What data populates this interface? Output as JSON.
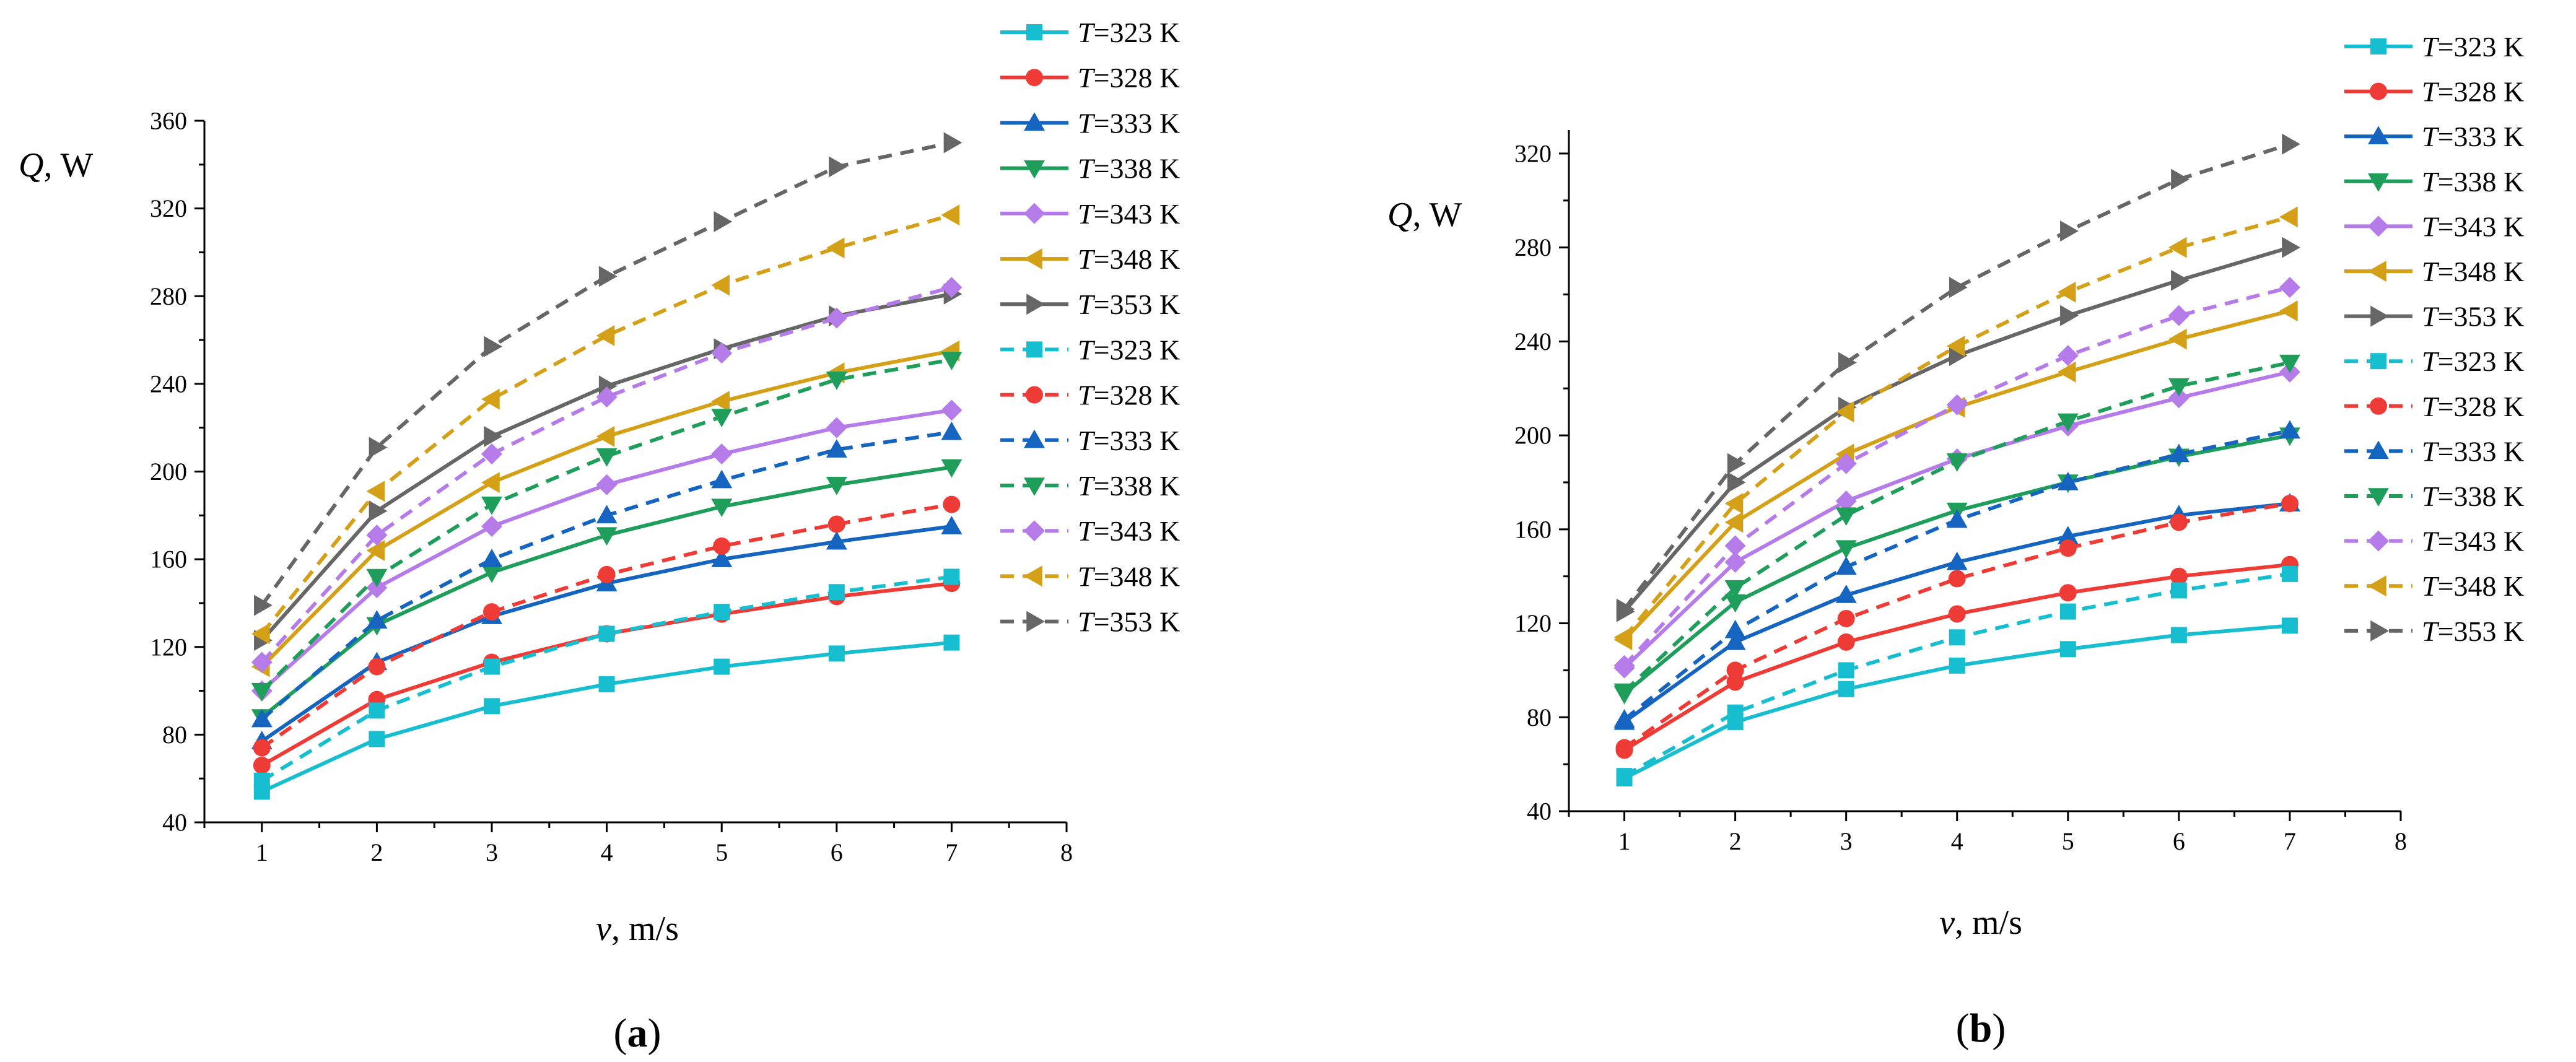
{
  "chart_data": [
    {
      "type": "line",
      "panel_label": "(a)",
      "xlabel": "v, m/s",
      "ylabel": "Q, W",
      "xlim": [
        0.5,
        8
      ],
      "ylim": [
        40,
        360
      ],
      "xticks": [
        1,
        2,
        3,
        4,
        5,
        6,
        7,
        8
      ],
      "yticks": [
        40,
        80,
        120,
        160,
        200,
        240,
        280,
        320,
        360
      ],
      "x": [
        1,
        2,
        3,
        4,
        5,
        6,
        7
      ],
      "series": [
        {
          "name": "T=323 K",
          "style": "solid",
          "marker": "square",
          "color": "#17becf",
          "values": [
            54,
            78,
            93,
            103,
            111,
            117,
            122
          ]
        },
        {
          "name": "T=328 K",
          "style": "solid",
          "marker": "circle",
          "color": "#ef3b36",
          "values": [
            66,
            96,
            113,
            126,
            135,
            143,
            149
          ]
        },
        {
          "name": "T=333 K",
          "style": "solid",
          "marker": "triangle-up",
          "color": "#1565c0",
          "values": [
            77,
            113,
            134,
            149,
            160,
            168,
            175
          ]
        },
        {
          "name": "T=338 K",
          "style": "solid",
          "marker": "triangle-down",
          "color": "#1e9e5a",
          "values": [
            88,
            130,
            154,
            171,
            184,
            194,
            202
          ]
        },
        {
          "name": "T=343 K",
          "style": "solid",
          "marker": "diamond",
          "color": "#b57be8",
          "values": [
            100,
            147,
            175,
            194,
            208,
            220,
            228
          ]
        },
        {
          "name": "T=348 K",
          "style": "solid",
          "marker": "triangle-left",
          "color": "#d4a017",
          "values": [
            111,
            164,
            195,
            216,
            232,
            245,
            255
          ]
        },
        {
          "name": "T=353 K",
          "style": "solid",
          "marker": "triangle-right",
          "color": "#666666",
          "values": [
            123,
            182,
            216,
            239,
            256,
            271,
            281
          ]
        },
        {
          "name": "T=323 K",
          "style": "dashed",
          "marker": "square",
          "color": "#17becf",
          "values": [
            59,
            91,
            111,
            126,
            136,
            145,
            152
          ]
        },
        {
          "name": "T=328 K",
          "style": "dashed",
          "marker": "circle",
          "color": "#ef3b36",
          "values": [
            74,
            111,
            136,
            153,
            166,
            176,
            185
          ]
        },
        {
          "name": "T=333 K",
          "style": "dashed",
          "marker": "triangle-up",
          "color": "#1565c0",
          "values": [
            87,
            132,
            160,
            180,
            196,
            210,
            218
          ]
        },
        {
          "name": "T=338 K",
          "style": "dashed",
          "marker": "triangle-down",
          "color": "#1e9e5a",
          "values": [
            100,
            152,
            185,
            207,
            225,
            242,
            251
          ]
        },
        {
          "name": "T=343 K",
          "style": "dashed",
          "marker": "diamond",
          "color": "#b57be8",
          "values": [
            113,
            171,
            208,
            234,
            254,
            270,
            284
          ]
        },
        {
          "name": "T=348 K",
          "style": "dashed",
          "marker": "triangle-left",
          "color": "#d4a017",
          "values": [
            126,
            191,
            233,
            262,
            285,
            302,
            317
          ]
        },
        {
          "name": "T=353 K",
          "style": "dashed",
          "marker": "triangle-right",
          "color": "#666666",
          "values": [
            139,
            211,
            257,
            289,
            314,
            339,
            350
          ]
        }
      ]
    },
    {
      "type": "line",
      "panel_label": "(b)",
      "xlabel": "v, m/s",
      "ylabel": "Q, W",
      "xlim": [
        0.5,
        8
      ],
      "ylim": [
        40,
        330
      ],
      "xticks": [
        1,
        2,
        3,
        4,
        5,
        6,
        7,
        8
      ],
      "yticks": [
        40,
        80,
        120,
        160,
        200,
        240,
        280,
        320
      ],
      "x": [
        1,
        2,
        3,
        4,
        5,
        6,
        7
      ],
      "series": [
        {
          "name": "T=323 K",
          "style": "solid",
          "marker": "square",
          "color": "#17becf",
          "values": [
            54,
            78,
            92,
            102,
            109,
            115,
            119
          ]
        },
        {
          "name": "T=328 K",
          "style": "solid",
          "marker": "circle",
          "color": "#ef3b36",
          "values": [
            66,
            95,
            112,
            124,
            133,
            140,
            145
          ]
        },
        {
          "name": "T=333 K",
          "style": "solid",
          "marker": "triangle-up",
          "color": "#1565c0",
          "values": [
            78,
            112,
            132,
            146,
            157,
            166,
            171
          ]
        },
        {
          "name": "T=338 K",
          "style": "solid",
          "marker": "triangle-down",
          "color": "#1e9e5a",
          "values": [
            90,
            129,
            152,
            168,
            180,
            191,
            200
          ]
        },
        {
          "name": "T=343 K",
          "style": "solid",
          "marker": "diamond",
          "color": "#b57be8",
          "values": [
            101,
            146,
            172,
            190,
            204,
            216,
            227
          ]
        },
        {
          "name": "T=348 K",
          "style": "solid",
          "marker": "triangle-left",
          "color": "#d4a017",
          "values": [
            113,
            163,
            192,
            212,
            227,
            241,
            253
          ]
        },
        {
          "name": "T=353 K",
          "style": "solid",
          "marker": "triangle-right",
          "color": "#666666",
          "values": [
            125,
            180,
            212,
            234,
            251,
            266,
            280
          ]
        },
        {
          "name": "T=323 K",
          "style": "dashed",
          "marker": "square",
          "color": "#17becf",
          "values": [
            55,
            82,
            100,
            114,
            125,
            134,
            141
          ]
        },
        {
          "name": "T=328 K",
          "style": "dashed",
          "marker": "circle",
          "color": "#ef3b36",
          "values": [
            67,
            100,
            122,
            139,
            152,
            163,
            171
          ]
        },
        {
          "name": "T=333 K",
          "style": "dashed",
          "marker": "triangle-up",
          "color": "#1565c0",
          "values": [
            79,
            117,
            144,
            164,
            180,
            192,
            202
          ]
        },
        {
          "name": "T=338 K",
          "style": "dashed",
          "marker": "triangle-down",
          "color": "#1e9e5a",
          "values": [
            91,
            135,
            166,
            189,
            206,
            221,
            231
          ]
        },
        {
          "name": "T=343 K",
          "style": "dashed",
          "marker": "diamond",
          "color": "#b57be8",
          "values": [
            102,
            153,
            188,
            213,
            234,
            251,
            263
          ]
        },
        {
          "name": "T=348 K",
          "style": "dashed",
          "marker": "triangle-left",
          "color": "#d4a017",
          "values": [
            114,
            171,
            210,
            238,
            261,
            280,
            293
          ]
        },
        {
          "name": "T=353 K",
          "style": "dashed",
          "marker": "triangle-right",
          "color": "#666666",
          "values": [
            126,
            188,
            231,
            263,
            287,
            309,
            324
          ]
        }
      ]
    }
  ]
}
